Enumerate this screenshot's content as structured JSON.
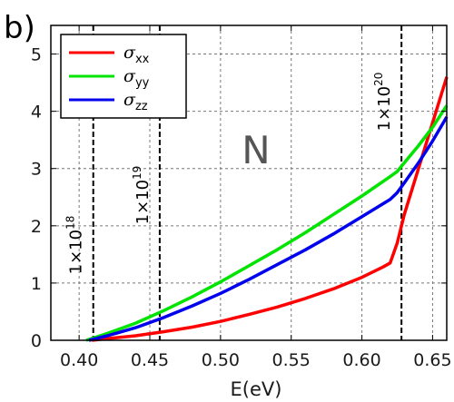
{
  "panel_label": "b)",
  "region_label": "N",
  "colors": {
    "xx": "#ff0000",
    "yy": "#00e400",
    "zz": "#0000ee",
    "frame": "#000000",
    "grid": "#777777"
  },
  "legend": [
    {
      "symbol": "σ",
      "sub": "xx",
      "color": "#ff0000"
    },
    {
      "symbol": "σ",
      "sub": "yy",
      "color": "#00e400"
    },
    {
      "symbol": "σ",
      "sub": "zz",
      "color": "#0000ee"
    }
  ],
  "chart_data": {
    "type": "line",
    "xlabel": "E(eV)",
    "ylabel": "",
    "xlim": [
      0.38,
      0.66
    ],
    "ylim": [
      0,
      5.5
    ],
    "xticks": [
      "0.40",
      "0.45",
      "0.50",
      "0.55",
      "0.60",
      "0.65"
    ],
    "xtick_values": [
      0.4,
      0.45,
      0.5,
      0.55,
      0.6,
      0.65
    ],
    "yticks": [
      "0",
      "1",
      "2",
      "3",
      "4",
      "5"
    ],
    "ytick_values": [
      0,
      1,
      2,
      3,
      4,
      5
    ],
    "grid": true,
    "legend_position": "top-left",
    "series": [
      {
        "name": "σxx",
        "x": [
          0.409,
          0.42,
          0.44,
          0.46,
          0.48,
          0.5,
          0.52,
          0.54,
          0.56,
          0.58,
          0.6,
          0.615,
          0.62,
          0.625,
          0.63,
          0.64,
          0.65,
          0.655,
          0.66
        ],
        "y": [
          0.0,
          0.03,
          0.08,
          0.15,
          0.23,
          0.33,
          0.45,
          0.58,
          0.73,
          0.9,
          1.1,
          1.28,
          1.35,
          1.7,
          2.2,
          3.0,
          3.8,
          4.2,
          4.6
        ]
      },
      {
        "name": "σyy",
        "x": [
          0.405,
          0.42,
          0.44,
          0.46,
          0.48,
          0.5,
          0.52,
          0.54,
          0.56,
          0.58,
          0.6,
          0.62,
          0.625,
          0.63,
          0.64,
          0.65,
          0.66
        ],
        "y": [
          0.0,
          0.12,
          0.3,
          0.52,
          0.76,
          1.02,
          1.3,
          1.58,
          1.88,
          2.2,
          2.52,
          2.86,
          2.95,
          3.1,
          3.4,
          3.72,
          4.1
        ]
      },
      {
        "name": "σzz",
        "x": [
          0.407,
          0.42,
          0.44,
          0.46,
          0.48,
          0.5,
          0.52,
          0.54,
          0.56,
          0.58,
          0.6,
          0.62,
          0.625,
          0.63,
          0.64,
          0.65,
          0.66
        ],
        "y": [
          0.0,
          0.08,
          0.22,
          0.4,
          0.6,
          0.82,
          1.06,
          1.32,
          1.58,
          1.86,
          2.16,
          2.46,
          2.58,
          2.75,
          3.1,
          3.48,
          3.9
        ]
      }
    ],
    "annotations": [
      {
        "x": 0.41,
        "label": "1×10",
        "sup": "18"
      },
      {
        "x": 0.457,
        "label": "1×10",
        "sup": "19"
      },
      {
        "x": 0.628,
        "label": "1×10",
        "sup": "20"
      }
    ]
  }
}
